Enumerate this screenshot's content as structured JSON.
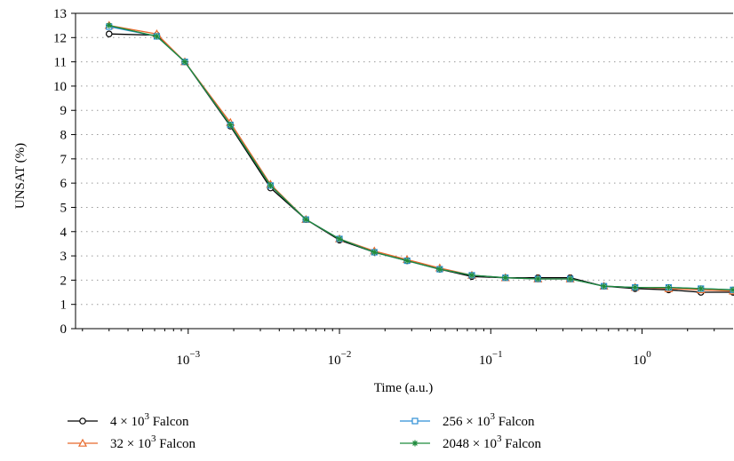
{
  "chart_data": {
    "type": "line",
    "title": "",
    "xlabel": "Time (a.u.)",
    "ylabel": "UNSAT (%)",
    "xscale": "log",
    "xlim": [
      0.00018,
      4
    ],
    "ylim": [
      0,
      13
    ],
    "yticks": [
      0,
      1,
      2,
      3,
      4,
      5,
      6,
      7,
      8,
      9,
      10,
      11,
      12,
      13
    ],
    "xticks": [
      {
        "value": 0.001,
        "base": "10",
        "exp": "−3"
      },
      {
        "value": 0.01,
        "base": "10",
        "exp": "−2"
      },
      {
        "value": 0.1,
        "base": "10",
        "exp": "−1"
      },
      {
        "value": 1,
        "base": "10",
        "exp": "0"
      }
    ],
    "grid": "horizontal-dotted",
    "legend_position": "bottom",
    "x": [
      0.0003,
      0.00062,
      0.00095,
      0.0019,
      0.0035,
      0.006,
      0.01,
      0.017,
      0.028,
      0.046,
      0.075,
      0.125,
      0.205,
      0.335,
      0.56,
      0.9,
      1.5,
      2.45,
      4.0
    ],
    "series": [
      {
        "legend_base": "4 × 10",
        "legend_exp": "3",
        "legend_suffix": " Falcon",
        "color": "#000000",
        "marker": "circle",
        "values": [
          12.15,
          12.1,
          11.0,
          8.35,
          5.8,
          4.5,
          3.65,
          3.15,
          2.8,
          2.45,
          2.15,
          2.1,
          2.1,
          2.1,
          1.75,
          1.65,
          1.6,
          1.5,
          1.5
        ]
      },
      {
        "legend_base": "32 × 10",
        "legend_exp": "3",
        "legend_suffix": " Falcon",
        "color": "#e8692b",
        "marker": "triangle",
        "values": [
          12.5,
          12.15,
          11.0,
          8.5,
          5.95,
          4.5,
          3.7,
          3.2,
          2.85,
          2.5,
          2.2,
          2.1,
          2.05,
          2.05,
          1.75,
          1.7,
          1.65,
          1.6,
          1.55
        ]
      },
      {
        "legend_base": "256 × 10",
        "legend_exp": "3",
        "legend_suffix": " Falcon",
        "color": "#2f8fd6",
        "marker": "square",
        "values": [
          12.45,
          12.05,
          11.0,
          8.4,
          5.9,
          4.5,
          3.7,
          3.15,
          2.8,
          2.45,
          2.2,
          2.1,
          2.05,
          2.05,
          1.75,
          1.7,
          1.7,
          1.65,
          1.6
        ]
      },
      {
        "legend_base": "2048 × 10",
        "legend_exp": "3",
        "legend_suffix": " Falcon",
        "color": "#1e8a3c",
        "marker": "star",
        "values": [
          12.5,
          12.05,
          11.0,
          8.4,
          5.9,
          4.5,
          3.7,
          3.15,
          2.8,
          2.45,
          2.2,
          2.1,
          2.05,
          2.05,
          1.75,
          1.7,
          1.7,
          1.65,
          1.6
        ]
      }
    ]
  }
}
